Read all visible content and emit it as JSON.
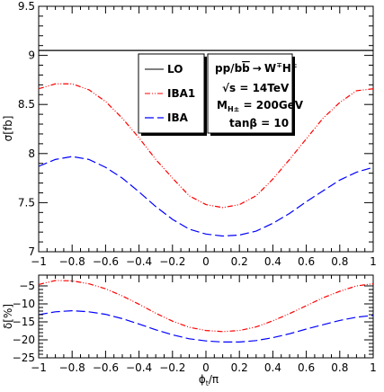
{
  "chart_data": [
    {
      "type": "line",
      "xlim": [
        -1,
        1
      ],
      "ylim": [
        7,
        9.5
      ],
      "ylabel": "σ[fb]",
      "xticks": [
        -1,
        -0.8,
        -0.6,
        -0.4,
        -0.2,
        0,
        0.2,
        0.4,
        0.6,
        0.8,
        1
      ],
      "xtick_labels": [
        "−1",
        "−0.8",
        "−0.6",
        "−0.4",
        "−0.2",
        "0",
        "0.2",
        "0.4",
        "0.6",
        "0.8",
        "1"
      ],
      "yticks": [
        7,
        7.5,
        8,
        8.5,
        9,
        9.5
      ],
      "ytick_labels": [
        "7",
        "7.5",
        "8",
        "8.5",
        "9",
        "9.5"
      ],
      "grid": false,
      "legend": {
        "placement": "top-center",
        "entries": [
          {
            "label": "LO",
            "style": "solid"
          },
          {
            "label": "IBA1",
            "style": "dash-dot"
          },
          {
            "label": "IBA",
            "style": "long-dash"
          }
        ]
      },
      "annotation": {
        "line1_pre": "pp/b",
        "line1_bbar": "b",
        "line1_arrow": "→",
        "line1_w": "W",
        "line1_wsup": "∓",
        "line1_h": "H",
        "line1_hsup": "±",
        "line2_sqrt": "√",
        "line2_text": "s = 14TeV",
        "line3_m": "M",
        "line3_sub": "H±",
        "line3_text": " = 200GeV",
        "line4": "tanβ = 10"
      },
      "series": [
        {
          "name": "LO",
          "color": "#000000",
          "x": [
            -1,
            -0.8,
            -0.6,
            -0.4,
            -0.2,
            0,
            0.2,
            0.4,
            0.6,
            0.8,
            1
          ],
          "y": [
            9.05,
            9.05,
            9.05,
            9.05,
            9.05,
            9.05,
            9.05,
            9.05,
            9.05,
            9.05,
            9.05
          ]
        },
        {
          "name": "IBA1",
          "color": "#ff0000",
          "x": [
            -1,
            -0.9,
            -0.8,
            -0.7,
            -0.6,
            -0.5,
            -0.4,
            -0.3,
            -0.2,
            -0.1,
            0,
            0.1,
            0.2,
            0.3,
            0.4,
            0.5,
            0.6,
            0.7,
            0.8,
            0.9,
            1
          ],
          "y": [
            8.66,
            8.71,
            8.71,
            8.65,
            8.53,
            8.36,
            8.16,
            7.94,
            7.75,
            7.57,
            7.48,
            7.45,
            7.48,
            7.57,
            7.74,
            7.94,
            8.15,
            8.36,
            8.52,
            8.64,
            8.66
          ]
        },
        {
          "name": "IBA",
          "color": "#0000ff",
          "x": [
            -1,
            -0.9,
            -0.8,
            -0.7,
            -0.6,
            -0.5,
            -0.4,
            -0.3,
            -0.2,
            -0.1,
            0,
            0.1,
            0.2,
            0.3,
            0.4,
            0.5,
            0.6,
            0.7,
            0.8,
            0.9,
            1
          ],
          "y": [
            7.87,
            7.94,
            7.97,
            7.94,
            7.86,
            7.75,
            7.61,
            7.46,
            7.33,
            7.23,
            7.18,
            7.16,
            7.17,
            7.21,
            7.29,
            7.39,
            7.51,
            7.62,
            7.73,
            7.81,
            7.86
          ]
        }
      ]
    },
    {
      "type": "line",
      "xlim": [
        -1,
        1
      ],
      "ylim": [
        -25,
        -2
      ],
      "ylabel": "δ[%]",
      "xlabel_main": "ϕ",
      "xlabel_sub": "t",
      "xlabel_rest": "/π",
      "xticks": [
        -1,
        -0.8,
        -0.6,
        -0.4,
        -0.2,
        0,
        0.2,
        0.4,
        0.6,
        0.8,
        1
      ],
      "xtick_labels": [
        "−1",
        "−0.8",
        "−0.6",
        "−0.4",
        "−0.2",
        "0",
        "0.2",
        "0.4",
        "0.6",
        "0.8",
        "1"
      ],
      "yticks": [
        -25,
        -20,
        -15,
        -10,
        -5
      ],
      "ytick_labels": [
        "−25",
        "−20",
        "−15",
        "−10",
        "−5"
      ],
      "grid": false,
      "series": [
        {
          "name": "IBA1",
          "color": "#ff0000",
          "x": [
            -1,
            -0.9,
            -0.8,
            -0.7,
            -0.6,
            -0.5,
            -0.4,
            -0.3,
            -0.2,
            -0.1,
            0,
            0.1,
            0.2,
            0.3,
            0.4,
            0.5,
            0.6,
            0.7,
            0.8,
            0.9,
            1
          ],
          "y": [
            -4.6,
            -3.5,
            -3.6,
            -4.4,
            -5.8,
            -7.8,
            -10.1,
            -12.6,
            -14.8,
            -16.5,
            -17.4,
            -17.7,
            -17.4,
            -16.4,
            -14.7,
            -12.7,
            -10.5,
            -8.3,
            -6.5,
            -5.0,
            -4.4
          ]
        },
        {
          "name": "IBA",
          "color": "#0000ff",
          "x": [
            -1,
            -0.9,
            -0.8,
            -0.7,
            -0.6,
            -0.5,
            -0.4,
            -0.3,
            -0.2,
            -0.1,
            0,
            0.1,
            0.2,
            0.3,
            0.4,
            0.5,
            0.6,
            0.7,
            0.8,
            0.9,
            1
          ],
          "y": [
            -13.0,
            -12.2,
            -11.9,
            -12.2,
            -12.9,
            -14.1,
            -15.6,
            -17.2,
            -18.6,
            -19.7,
            -20.3,
            -20.6,
            -20.6,
            -20.2,
            -19.4,
            -18.3,
            -17.0,
            -15.8,
            -14.6,
            -13.7,
            -13.2
          ]
        }
      ]
    }
  ]
}
